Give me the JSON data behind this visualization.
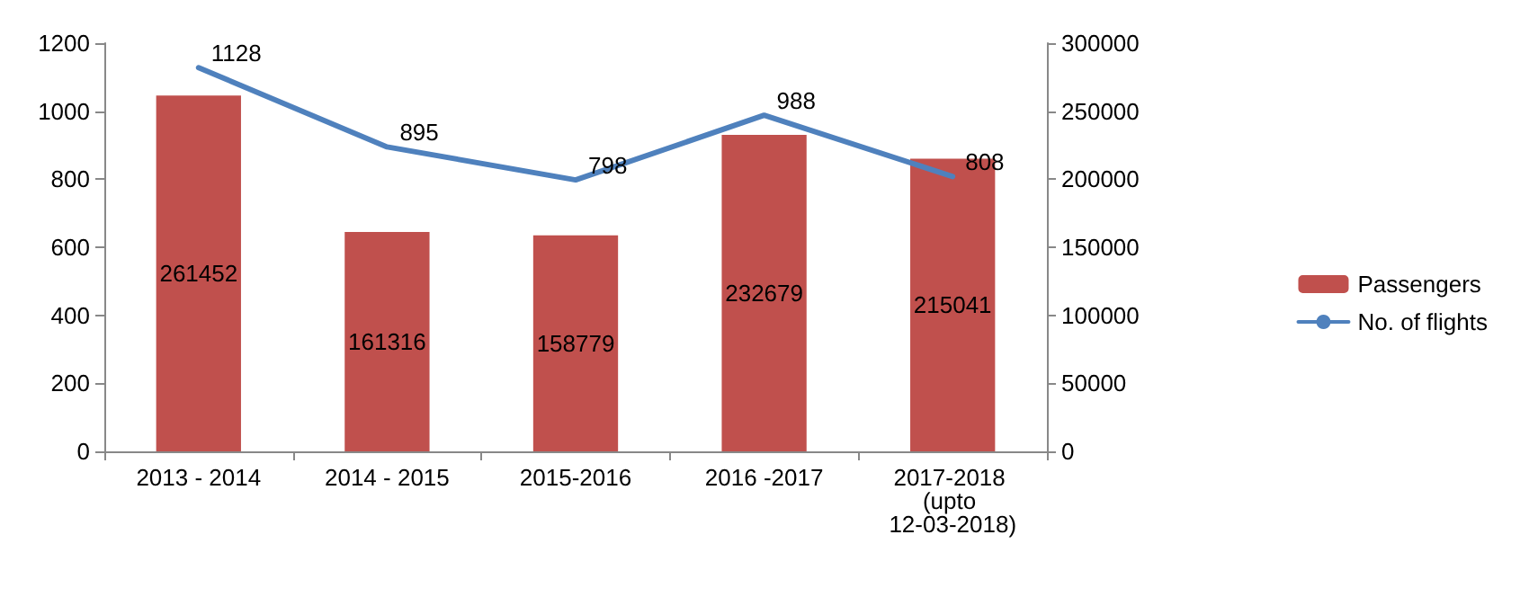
{
  "chart_data": {
    "type": "bar",
    "categories": [
      "2013 - 2014",
      "2014 - 2015",
      "2015-2016",
      "2016 -2017",
      "2017-2018 (upto 12-03-2018)"
    ],
    "series": [
      {
        "name": "Passengers",
        "axis": "y2",
        "color": "#c0504d",
        "values": [
          261452,
          161316,
          158779,
          232679,
          215041
        ]
      },
      {
        "name": "No. of flights",
        "type": "line",
        "color": "#4f81bd",
        "values": [
          1128,
          895,
          798,
          988,
          808
        ]
      }
    ],
    "ylim": [
      0,
      1200
    ],
    "yticks": [
      0,
      200,
      400,
      600,
      800,
      1000,
      1200
    ],
    "y2lim": [
      0,
      300000
    ],
    "y2ticks": [
      0,
      50000,
      100000,
      150000,
      200000,
      250000,
      300000
    ],
    "data_labels": true,
    "grid": false,
    "legend": "right",
    "marker": "none"
  }
}
